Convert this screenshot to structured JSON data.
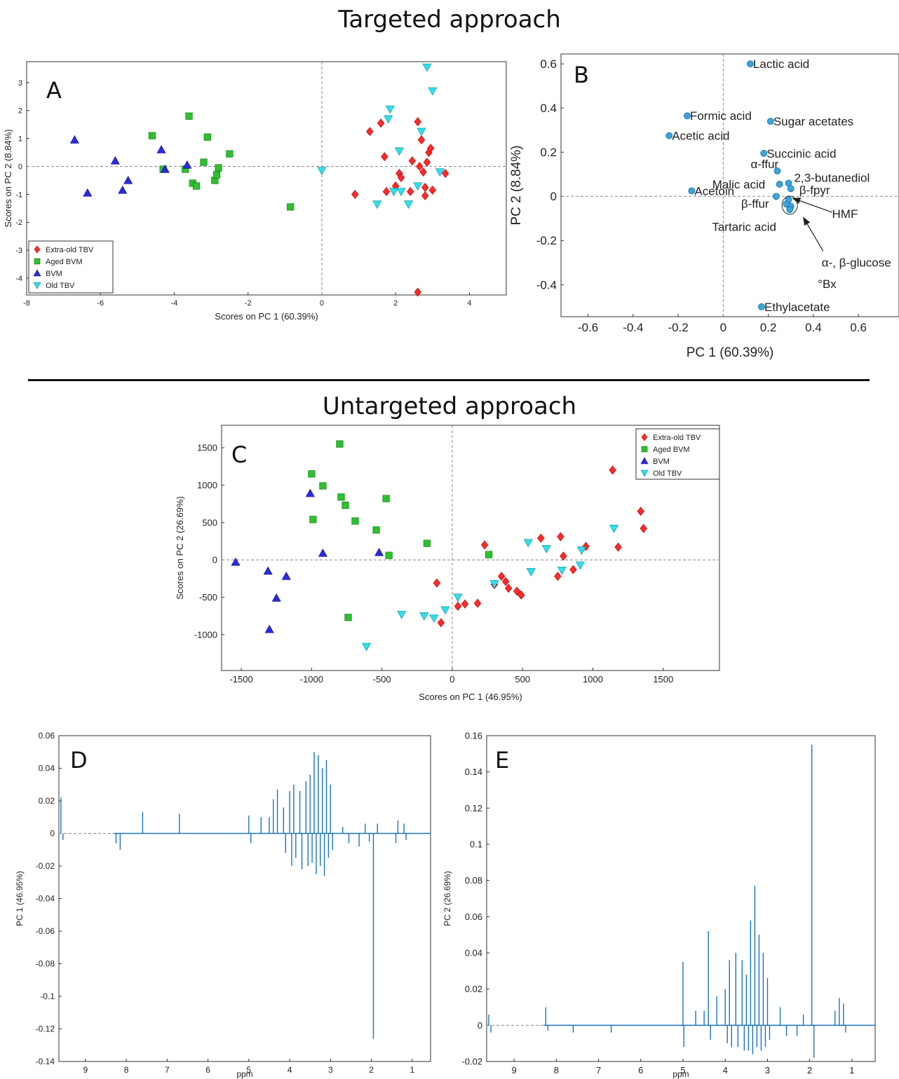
{
  "titles": {
    "targeted": "Targeted approach",
    "untargeted": "Untargeted approach"
  },
  "colors": {
    "Extra-old TBV": "#ff2a2a",
    "Aged BVM": "#2ec02e",
    "BVM": "#2a2ae0",
    "Old TBV": "#2ee0ee",
    "loading": "#3aa6dc",
    "spectrum": "#1a73c0"
  },
  "chart_data": [
    {
      "panel": "A",
      "type": "scatter",
      "xlabel": "Scores on PC 1 (60.39%)",
      "ylabel": "Scores on PC 2 (8.84%)",
      "xlim": [
        -8,
        5
      ],
      "ylim": [
        -4.6,
        3.75
      ],
      "xticks": [
        -8,
        -6,
        -4,
        -2,
        0,
        2,
        4
      ],
      "yticks": [
        -4,
        -3,
        -2,
        -1,
        0,
        1,
        2,
        3
      ],
      "legend": {
        "position": "bottom-left",
        "entries": [
          "Extra-old TBV",
          "Aged BVM",
          "BVM",
          "Old TBV"
        ]
      },
      "series": [
        {
          "name": "Extra-old TBV",
          "marker": "diamond",
          "points": [
            [
              0.9,
              -1.0
            ],
            [
              1.3,
              1.25
            ],
            [
              1.6,
              1.55
            ],
            [
              1.7,
              0.35
            ],
            [
              1.75,
              -0.9
            ],
            [
              2.0,
              -0.7
            ],
            [
              2.1,
              -0.25
            ],
            [
              2.15,
              -0.4
            ],
            [
              2.4,
              -0.9
            ],
            [
              2.45,
              0.2
            ],
            [
              2.6,
              1.6
            ],
            [
              2.7,
              0.95
            ],
            [
              2.65,
              0.0
            ],
            [
              2.75,
              -0.2
            ],
            [
              2.8,
              -0.75
            ],
            [
              2.85,
              0.15
            ],
            [
              2.9,
              0.5
            ],
            [
              2.95,
              0.65
            ],
            [
              2.8,
              -1.05
            ],
            [
              3.0,
              -0.85
            ],
            [
              3.35,
              -0.25
            ],
            [
              2.6,
              -4.5
            ]
          ]
        },
        {
          "name": "Aged BVM",
          "marker": "square",
          "points": [
            [
              -4.6,
              1.1
            ],
            [
              -4.3,
              -0.1
            ],
            [
              -3.7,
              -0.1
            ],
            [
              -3.6,
              1.8
            ],
            [
              -3.5,
              -0.6
            ],
            [
              -3.4,
              -0.7
            ],
            [
              -3.2,
              0.15
            ],
            [
              -3.1,
              1.05
            ],
            [
              -2.9,
              -0.5
            ],
            [
              -2.85,
              -0.3
            ],
            [
              -2.8,
              -0.05
            ],
            [
              -2.5,
              0.45
            ],
            [
              -0.85,
              -1.45
            ]
          ]
        },
        {
          "name": "BVM",
          "marker": "triangle-up",
          "points": [
            [
              -6.7,
              0.95
            ],
            [
              -6.35,
              -0.95
            ],
            [
              -5.6,
              0.2
            ],
            [
              -5.4,
              -0.85
            ],
            [
              -5.25,
              -0.5
            ],
            [
              -4.35,
              0.6
            ],
            [
              -4.25,
              -0.1
            ],
            [
              -3.65,
              0.05
            ]
          ]
        },
        {
          "name": "Old TBV",
          "marker": "triangle-down",
          "points": [
            [
              0.0,
              -0.15
            ],
            [
              1.5,
              -1.35
            ],
            [
              1.8,
              1.7
            ],
            [
              1.85,
              2.05
            ],
            [
              1.95,
              -0.9
            ],
            [
              2.1,
              0.55
            ],
            [
              2.15,
              -0.9
            ],
            [
              2.35,
              -1.35
            ],
            [
              2.6,
              -0.7
            ],
            [
              2.7,
              1.25
            ],
            [
              2.85,
              3.55
            ],
            [
              3.0,
              2.7
            ],
            [
              3.2,
              -0.2
            ]
          ]
        }
      ]
    },
    {
      "panel": "B",
      "type": "scatter",
      "xlabel": "PC 1 (60.39%)",
      "ylabel": "PC 2 (8.84%)",
      "xlim": [
        -0.72,
        0.78
      ],
      "ylim": [
        -0.545,
        0.645
      ],
      "xticks": [
        -0.6,
        -0.4,
        -0.2,
        0,
        0.2,
        0.4,
        0.6
      ],
      "xticklabels": [
        "-0.6",
        "-0.4",
        "-0.2",
        "0",
        "0.2",
        "0.4",
        "0.6"
      ],
      "yticks": [
        -0.4,
        -0.2,
        0,
        0.2,
        0.4,
        0.6
      ],
      "yticklabels": [
        "-0.4",
        "-0.2",
        "0",
        "0.2",
        "0.4",
        "0.6"
      ],
      "points": [
        {
          "label": "Lactic acid",
          "x": 0.12,
          "y": 0.6
        },
        {
          "label": "Formic acid",
          "x": -0.16,
          "y": 0.365
        },
        {
          "label": "Sugar acetates",
          "x": 0.21,
          "y": 0.34
        },
        {
          "label": "Acetic acid",
          "x": -0.24,
          "y": 0.275
        },
        {
          "label": "Succinic acid",
          "x": 0.18,
          "y": 0.195
        },
        {
          "label": "α-ffur",
          "x": 0.24,
          "y": 0.115
        },
        {
          "label": "2,3-butanediol",
          "x": 0.29,
          "y": 0.06
        },
        {
          "label": "Malic acid",
          "x": 0.25,
          "y": 0.055
        },
        {
          "label": "β-fpyr",
          "x": 0.3,
          "y": 0.035
        },
        {
          "label": "Acetoin",
          "x": -0.14,
          "y": 0.025
        },
        {
          "label": "β-ffur",
          "x": 0.235,
          "y": 0.0
        },
        {
          "label": "HMF",
          "x": 0.29,
          "y": -0.015
        },
        {
          "label": "Tartaric acid",
          "x": 0.28,
          "y": -0.035
        },
        {
          "label": "α-, β-glucose",
          "x": 0.3,
          "y": -0.045
        },
        {
          "label": "°Bx",
          "x": 0.295,
          "y": -0.06
        },
        {
          "label": "Ethylacetate",
          "x": 0.17,
          "y": -0.5
        }
      ]
    },
    {
      "panel": "C",
      "type": "scatter",
      "xlabel": "Scores on PC 1 (46.95%)",
      "ylabel": "Scores on PC 2 (26.69%)",
      "xlim": [
        -1640,
        1900
      ],
      "ylim": [
        -1480,
        1800
      ],
      "xticks": [
        -1500,
        -1000,
        -500,
        0,
        500,
        1000,
        1500
      ],
      "yticks": [
        -1000,
        -500,
        0,
        500,
        1000,
        1500
      ],
      "legend": {
        "position": "top-right",
        "entries": [
          "Extra-old TBV",
          "Aged BVM",
          "BVM",
          "Old TBV"
        ]
      },
      "series": [
        {
          "name": "Extra-old TBV",
          "marker": "diamond",
          "points": [
            [
              -110,
              -310
            ],
            [
              -80,
              -840
            ],
            [
              40,
              -620
            ],
            [
              90,
              -590
            ],
            [
              180,
              -580
            ],
            [
              230,
              200
            ],
            [
              300,
              -330
            ],
            [
              350,
              -220
            ],
            [
              380,
              -290
            ],
            [
              400,
              -380
            ],
            [
              460,
              -420
            ],
            [
              490,
              -470
            ],
            [
              630,
              290
            ],
            [
              750,
              -220
            ],
            [
              770,
              310
            ],
            [
              790,
              50
            ],
            [
              860,
              -130
            ],
            [
              950,
              180
            ],
            [
              1140,
              1200
            ],
            [
              1180,
              170
            ],
            [
              1340,
              650
            ],
            [
              1360,
              420
            ]
          ]
        },
        {
          "name": "Aged BVM",
          "marker": "square",
          "points": [
            [
              -1000,
              1150
            ],
            [
              -990,
              540
            ],
            [
              -920,
              990
            ],
            [
              -800,
              1550
            ],
            [
              -790,
              840
            ],
            [
              -760,
              730
            ],
            [
              -740,
              -770
            ],
            [
              -690,
              520
            ],
            [
              -540,
              400
            ],
            [
              -470,
              820
            ],
            [
              -450,
              60
            ],
            [
              -180,
              220
            ],
            [
              260,
              70
            ]
          ]
        },
        {
          "name": "BVM",
          "marker": "triangle-up",
          "points": [
            [
              -1540,
              -30
            ],
            [
              -1310,
              -150
            ],
            [
              -1300,
              -930
            ],
            [
              -1250,
              -510
            ],
            [
              -1180,
              -220
            ],
            [
              -1010,
              890
            ],
            [
              -920,
              90
            ],
            [
              -520,
              100
            ]
          ]
        },
        {
          "name": "Old TBV",
          "marker": "triangle-down",
          "points": [
            [
              -610,
              -1160
            ],
            [
              -360,
              -730
            ],
            [
              -200,
              -750
            ],
            [
              -130,
              -780
            ],
            [
              -50,
              -670
            ],
            [
              40,
              -500
            ],
            [
              300,
              -320
            ],
            [
              540,
              230
            ],
            [
              560,
              -160
            ],
            [
              670,
              150
            ],
            [
              780,
              -140
            ],
            [
              910,
              -70
            ],
            [
              920,
              130
            ],
            [
              1150,
              420
            ]
          ]
        }
      ]
    },
    {
      "panel": "D",
      "type": "line",
      "xlabel": "ppm",
      "ylabel": "PC 1 (46.95%)",
      "xlim": [
        9.65,
        0.55
      ],
      "ylim": [
        -0.14,
        0.06
      ],
      "xticks": [
        9,
        8,
        7,
        6,
        5,
        4,
        3,
        2,
        1
      ],
      "yticks": [
        -0.14,
        -0.12,
        -0.1,
        -0.08,
        -0.06,
        -0.04,
        -0.02,
        0,
        0.02,
        0.04,
        0.06
      ],
      "yticklabels": [
        "-0.14",
        "-0.12",
        "-0.1",
        "-0.08",
        "-0.06",
        "-0.04",
        "-0.02",
        "0",
        "0.02",
        "0.04",
        "0.06"
      ],
      "peaks": [
        [
          9.6,
          0.022
        ],
        [
          9.55,
          -0.004
        ],
        [
          8.25,
          -0.006
        ],
        [
          8.15,
          -0.01
        ],
        [
          7.6,
          0.013
        ],
        [
          6.7,
          0.012
        ],
        [
          5.0,
          0.011
        ],
        [
          4.95,
          -0.006
        ],
        [
          4.7,
          0.01
        ],
        [
          4.5,
          0.01
        ],
        [
          4.4,
          0.021
        ],
        [
          4.3,
          0.027
        ],
        [
          4.15,
          0.016
        ],
        [
          4.1,
          -0.012
        ],
        [
          4.0,
          0.026
        ],
        [
          3.95,
          -0.02
        ],
        [
          3.9,
          0.03
        ],
        [
          3.85,
          -0.015
        ],
        [
          3.75,
          0.026
        ],
        [
          3.7,
          -0.022
        ],
        [
          3.6,
          0.032
        ],
        [
          3.55,
          -0.02
        ],
        [
          3.5,
          0.036
        ],
        [
          3.45,
          -0.018
        ],
        [
          3.4,
          0.05
        ],
        [
          3.35,
          -0.025
        ],
        [
          3.3,
          0.048
        ],
        [
          3.25,
          -0.02
        ],
        [
          3.2,
          0.04
        ],
        [
          3.15,
          -0.026
        ],
        [
          3.1,
          0.045
        ],
        [
          3.05,
          -0.015
        ],
        [
          3.0,
          0.03
        ],
        [
          2.95,
          -0.01
        ],
        [
          2.7,
          0.004
        ],
        [
          2.55,
          -0.006
        ],
        [
          2.3,
          -0.008
        ],
        [
          2.15,
          0.006
        ],
        [
          2.05,
          -0.005
        ],
        [
          1.95,
          -0.126
        ],
        [
          1.85,
          0.006
        ],
        [
          1.4,
          -0.006
        ],
        [
          1.35,
          0.008
        ],
        [
          1.2,
          0.006
        ],
        [
          1.15,
          -0.004
        ]
      ]
    },
    {
      "panel": "E",
      "type": "line",
      "xlabel": "ppm",
      "ylabel": "PC 2 (26.69%)",
      "xlim": [
        9.65,
        0.45
      ],
      "ylim": [
        -0.02,
        0.16
      ],
      "xticks": [
        9,
        8,
        7,
        6,
        5,
        4,
        3,
        2,
        1
      ],
      "yticks": [
        -0.02,
        0,
        0.02,
        0.04,
        0.06,
        0.08,
        0.1,
        0.12,
        0.14,
        0.16
      ],
      "yticklabels": [
        "-0.02",
        "0",
        "0.02",
        "0.04",
        "0.06",
        "0.08",
        "0.1",
        "0.12",
        "0.14",
        "0.16"
      ],
      "peaks": [
        [
          9.6,
          0.006
        ],
        [
          9.55,
          -0.004
        ],
        [
          8.25,
          0.01
        ],
        [
          8.2,
          -0.003
        ],
        [
          7.6,
          -0.004
        ],
        [
          6.7,
          -0.004
        ],
        [
          5.0,
          0.035
        ],
        [
          4.98,
          -0.012
        ],
        [
          4.7,
          0.008
        ],
        [
          4.5,
          0.008
        ],
        [
          4.4,
          0.052
        ],
        [
          4.35,
          -0.008
        ],
        [
          4.2,
          0.016
        ],
        [
          4.0,
          0.02
        ],
        [
          3.95,
          -0.01
        ],
        [
          3.9,
          0.036
        ],
        [
          3.85,
          -0.012
        ],
        [
          3.75,
          0.04
        ],
        [
          3.7,
          -0.012
        ],
        [
          3.6,
          0.036
        ],
        [
          3.55,
          -0.014
        ],
        [
          3.5,
          0.028
        ],
        [
          3.45,
          -0.014
        ],
        [
          3.4,
          0.058
        ],
        [
          3.35,
          -0.016
        ],
        [
          3.3,
          0.077
        ],
        [
          3.25,
          -0.012
        ],
        [
          3.2,
          0.05
        ],
        [
          3.15,
          -0.014
        ],
        [
          3.1,
          0.04
        ],
        [
          3.05,
          -0.012
        ],
        [
          3.0,
          0.026
        ],
        [
          2.95,
          -0.008
        ],
        [
          2.7,
          0.01
        ],
        [
          2.55,
          -0.006
        ],
        [
          2.3,
          -0.006
        ],
        [
          2.15,
          0.006
        ],
        [
          1.95,
          0.155
        ],
        [
          1.9,
          -0.018
        ],
        [
          1.4,
          0.008
        ],
        [
          1.3,
          0.015
        ],
        [
          1.2,
          0.012
        ],
        [
          1.15,
          -0.004
        ]
      ]
    }
  ]
}
